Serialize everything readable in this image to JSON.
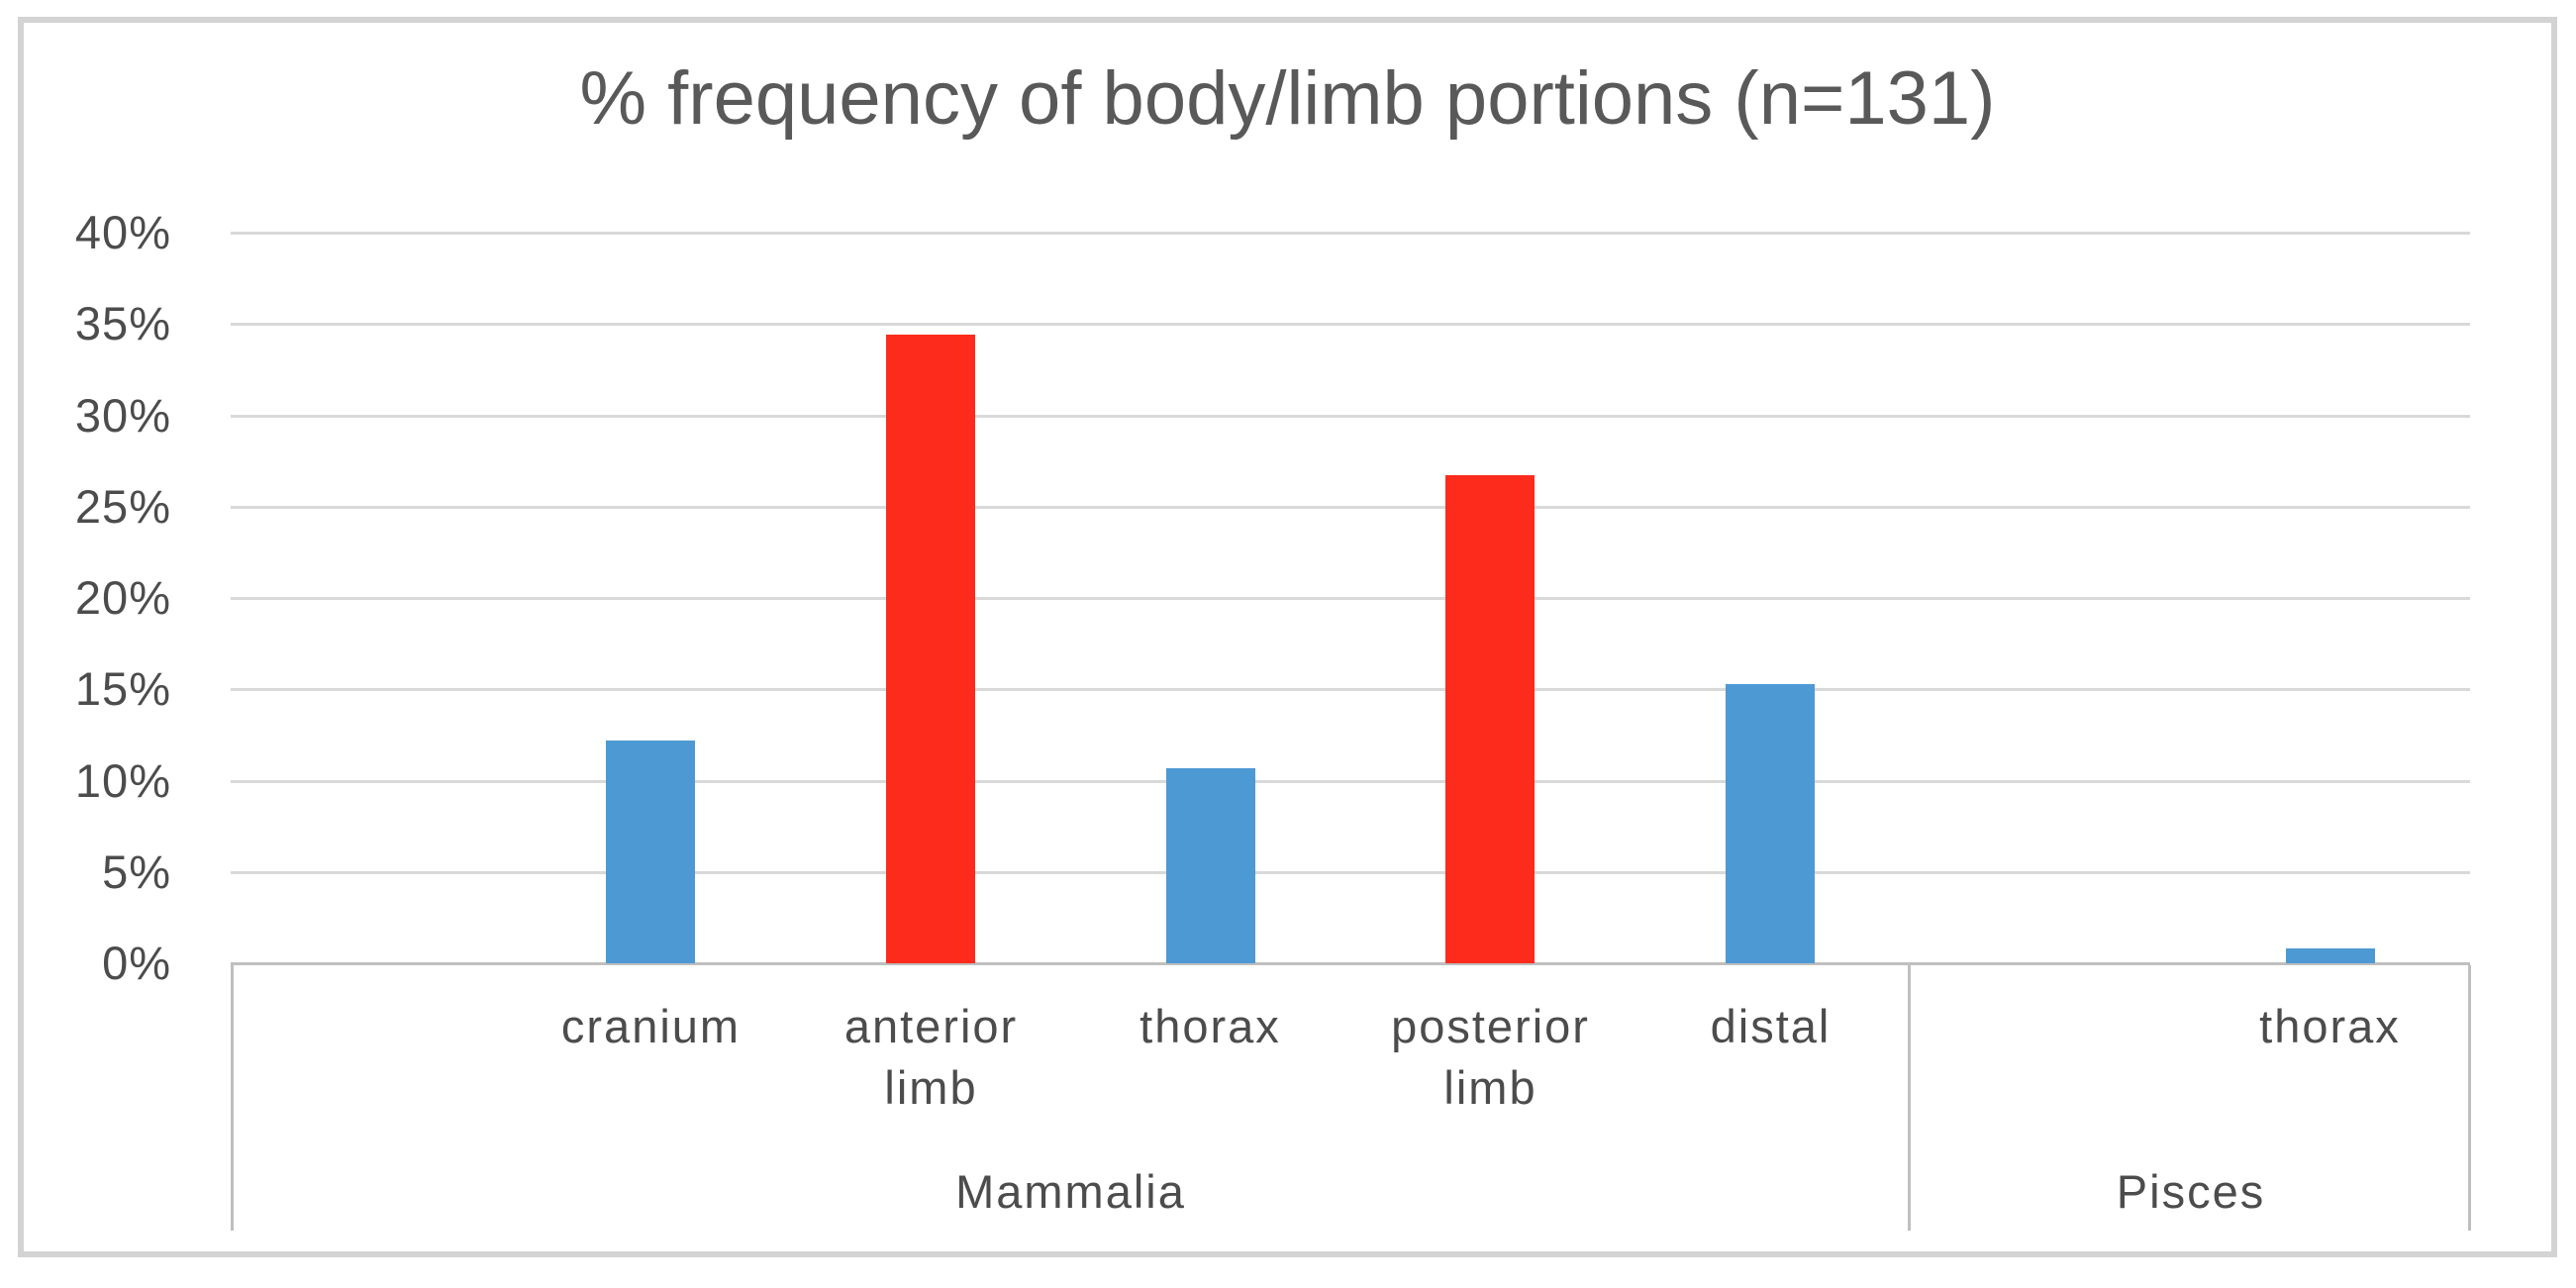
{
  "chart_data": {
    "type": "bar",
    "title": "% frequency of body/limb portions (n=131)",
    "n_label": "n=131",
    "categories": [
      "cranium",
      "anterior limb",
      "thorax",
      "posterior limb",
      "distal",
      "thorax"
    ],
    "groups": [
      "Mammalia",
      "Mammalia",
      "Mammalia",
      "Mammalia",
      "Mammalia",
      "Pisces"
    ],
    "values_pct": [
      12.2,
      34.4,
      10.7,
      26.7,
      15.3,
      0.8
    ],
    "bar_colors": [
      "#4D99D3",
      "#FC2B1B",
      "#4D99D3",
      "#FC2B1B",
      "#4D99D3",
      "#4D99D3"
    ],
    "slots": [
      1,
      2,
      3,
      4,
      5,
      7
    ],
    "total_slots": 8,
    "group_boxes": [
      {
        "label": "Mammalia",
        "slot_start": 0,
        "slot_span": 6
      },
      {
        "label": "Pisces",
        "slot_start": 6,
        "slot_span": 2
      }
    ],
    "y_axis": {
      "min": 0,
      "max": 40,
      "tick_step": 5,
      "tick_labels_top_to_bottom": [
        "40%",
        "35%",
        "30%",
        "25%",
        "20%",
        "15%",
        "10%",
        "5%",
        "0%"
      ]
    },
    "grid": "horizontal",
    "legend": "none",
    "xlabel": "",
    "ylabel": "",
    "colors": {
      "series_blue": "#4D99D3",
      "series_red": "#FC2B1B",
      "gridline": "#D9D9D9",
      "axis_line": "#BFBFBF",
      "label_text": "#4C4C4C",
      "title_text": "#595959",
      "figure_border": "#D3D3D3",
      "background": "#FFFFFF"
    }
  }
}
